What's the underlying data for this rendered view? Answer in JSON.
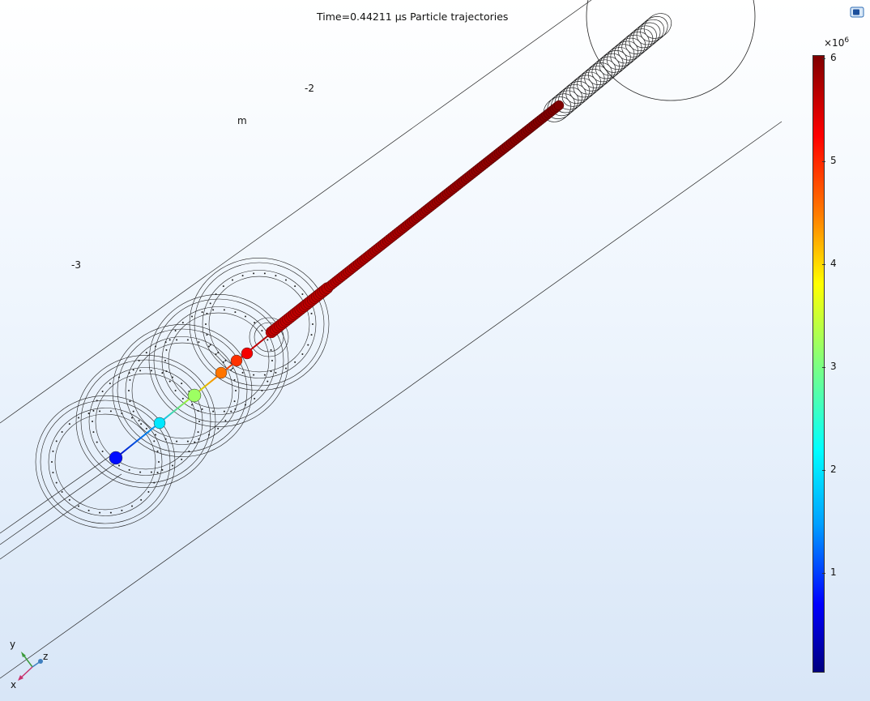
{
  "plot": {
    "title": "Time=0.44211 µs  Particle trajectories",
    "axis_labels": [
      {
        "text": "-2"
      },
      {
        "text": "m"
      },
      {
        "text": "-3"
      }
    ]
  },
  "colorbar": {
    "scale_prefix": "×10",
    "scale_exponent": "6",
    "ticks": [
      "6",
      "5",
      "4",
      "3",
      "2",
      "1"
    ],
    "colormap": "rainbow"
  },
  "triad": {
    "y": "y",
    "z": "z",
    "x": "x"
  },
  "toolbar": {
    "icon": "view-toggle-icon"
  },
  "colors": {
    "particle_high": "#8b0000",
    "trajectory_low": "#0000c8",
    "background_top": "#ffffff",
    "background_bottom": "#d8e6f7"
  }
}
